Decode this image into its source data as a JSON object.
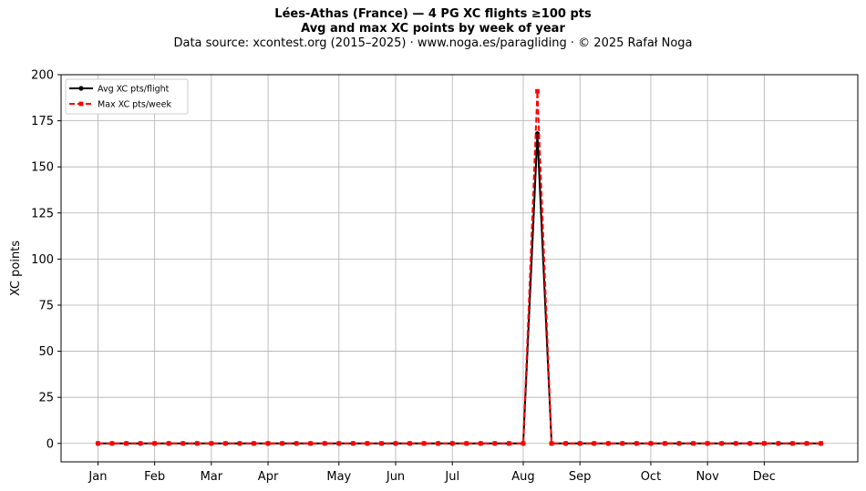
{
  "chart_data": {
    "type": "line",
    "title": "Lées-Athas (France)  —  4 PG XC flights ≥100 pts",
    "subtitle": "Avg and max XC points by week of year",
    "source_line": "Data source: xcontest.org (2015–2025)  ·  www.noga.es/paragliding  ·  © 2025 Rafał Noga",
    "xlabel": "",
    "ylabel": "XC points",
    "xlim": [
      1,
      52
    ],
    "ylim": [
      -10,
      200
    ],
    "yticks": [
      0,
      25,
      50,
      75,
      100,
      125,
      150,
      175,
      200
    ],
    "month_ticks": [
      {
        "label": "Jan",
        "week": 1
      },
      {
        "label": "Feb",
        "week": 5
      },
      {
        "label": "Mar",
        "week": 9
      },
      {
        "label": "Apr",
        "week": 13
      },
      {
        "label": "May",
        "week": 18
      },
      {
        "label": "Jun",
        "week": 22
      },
      {
        "label": "Jul",
        "week": 26
      },
      {
        "label": "Aug",
        "week": 31
      },
      {
        "label": "Sep",
        "week": 35
      },
      {
        "label": "Oct",
        "week": 40
      },
      {
        "label": "Nov",
        "week": 44
      },
      {
        "label": "Dec",
        "week": 48
      }
    ],
    "x": [
      1,
      2,
      3,
      4,
      5,
      6,
      7,
      8,
      9,
      10,
      11,
      12,
      13,
      14,
      15,
      16,
      17,
      18,
      19,
      20,
      21,
      22,
      23,
      24,
      25,
      26,
      27,
      28,
      29,
      30,
      31,
      32,
      33,
      34,
      35,
      36,
      37,
      38,
      39,
      40,
      41,
      42,
      43,
      44,
      45,
      46,
      47,
      48,
      49,
      50,
      51,
      52
    ],
    "grid": true,
    "legend_position": "top-left",
    "series": [
      {
        "name": "Avg XC pts/flight",
        "color": "#000000",
        "style": "solid",
        "marker": "circle",
        "values": [
          0,
          0,
          0,
          0,
          0,
          0,
          0,
          0,
          0,
          0,
          0,
          0,
          0,
          0,
          0,
          0,
          0,
          0,
          0,
          0,
          0,
          0,
          0,
          0,
          0,
          0,
          0,
          0,
          0,
          0,
          0,
          168,
          0,
          0,
          0,
          0,
          0,
          0,
          0,
          0,
          0,
          0,
          0,
          0,
          0,
          0,
          0,
          0,
          0,
          0,
          0,
          0
        ]
      },
      {
        "name": "Max XC pts/week",
        "color": "#ff0000",
        "style": "dashed",
        "marker": "square",
        "values": [
          0,
          0,
          0,
          0,
          0,
          0,
          0,
          0,
          0,
          0,
          0,
          0,
          0,
          0,
          0,
          0,
          0,
          0,
          0,
          0,
          0,
          0,
          0,
          0,
          0,
          0,
          0,
          0,
          0,
          0,
          0,
          191,
          0,
          0,
          0,
          0,
          0,
          0,
          0,
          0,
          0,
          0,
          0,
          0,
          0,
          0,
          0,
          0,
          0,
          0,
          0,
          0
        ]
      }
    ]
  }
}
